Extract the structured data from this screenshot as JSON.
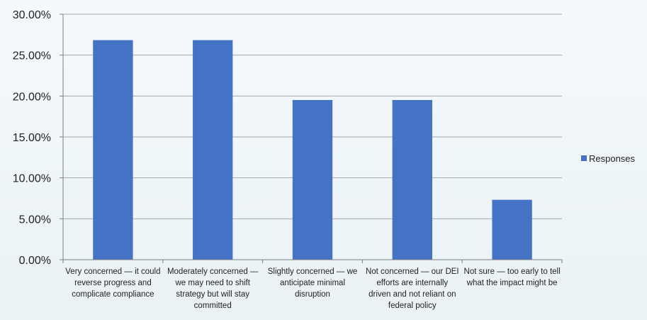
{
  "chart_data": {
    "type": "bar",
    "categories": [
      [
        "Very concerned — it could",
        "reverse progress and",
        "complicate compliance"
      ],
      [
        "Moderately concerned —",
        "we may need to shift",
        "strategy but will stay",
        "committed"
      ],
      [
        "Slightly concerned — we",
        "anticipate minimal",
        "disruption"
      ],
      [
        "Not concerned — our DEI",
        "efforts are internally",
        "driven and not reliant on",
        "federal policy"
      ],
      [
        "Not sure — too early to tell",
        "what the impact might be"
      ]
    ],
    "series": [
      {
        "name": "Responses",
        "values": [
          26.83,
          26.83,
          19.51,
          19.51,
          7.32
        ]
      }
    ],
    "ylim": [
      0,
      30
    ],
    "yticks": [
      "0.00%",
      "5.00%",
      "10.00%",
      "15.00%",
      "20.00%",
      "25.00%",
      "30.00%"
    ],
    "grid": true,
    "legend": "right",
    "colors": {
      "bar": "#4472C4",
      "grid": "#a6a6a6",
      "axis": "#7f7f7f"
    }
  }
}
